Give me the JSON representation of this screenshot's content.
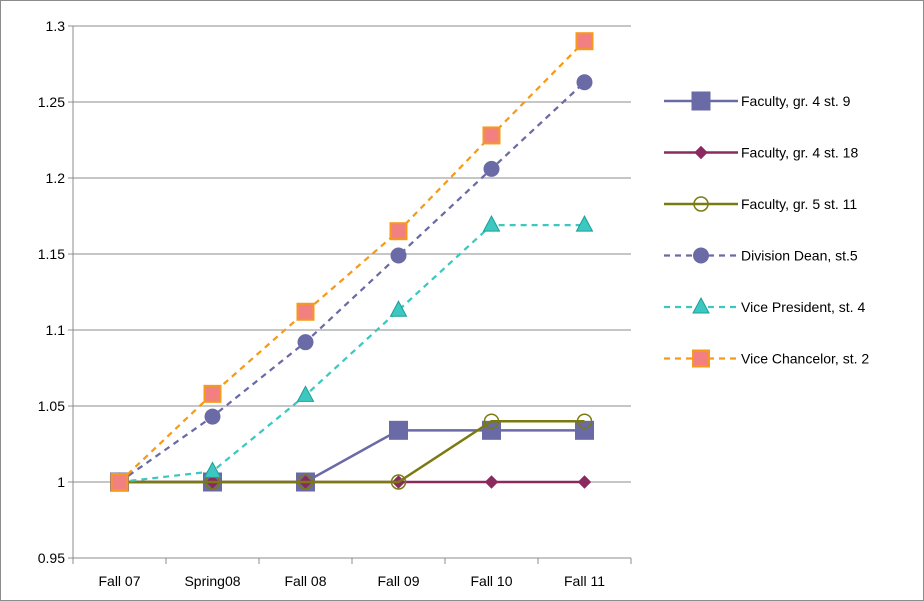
{
  "chart_data": {
    "type": "line",
    "categories": [
      "Fall 07",
      "Spring08",
      "Fall 08",
      "Fall 09",
      "Fall 10",
      "Fall 11"
    ],
    "ylim": [
      0.95,
      1.3
    ],
    "yticks": [
      "0.95",
      "1",
      "1.05",
      "1.1",
      "1.15",
      "1.2",
      "1.25",
      "1.3"
    ],
    "grid": "horizontal",
    "legend_position": "right",
    "series": [
      {
        "name": "Faculty, gr. 4 st. 9",
        "values": [
          1,
          1,
          1,
          1.034,
          1.034,
          1.034
        ],
        "color": "#6a6aa6",
        "dash": "solid",
        "marker": "square"
      },
      {
        "name": "Faculty, gr. 4 st. 18",
        "values": [
          1,
          1,
          1,
          1,
          1,
          1
        ],
        "color": "#8b2a5e",
        "dash": "solid",
        "marker": "diamond"
      },
      {
        "name": "Faculty, gr. 5 st. 11",
        "values": [
          1,
          1,
          1,
          1,
          1.04,
          1.04
        ],
        "color": "#7a7a10",
        "dash": "solid",
        "marker": "circle-open"
      },
      {
        "name": "Division Dean, st.5",
        "values": [
          1,
          1.043,
          1.092,
          1.149,
          1.206,
          1.263
        ],
        "color": "#6a6aa6",
        "dash": "dashed",
        "marker": "circle"
      },
      {
        "name": "Vice President, st. 4",
        "values": [
          1,
          1.007,
          1.057,
          1.113,
          1.169,
          1.169
        ],
        "color": "#3cc8c0",
        "dash": "dashed",
        "marker": "triangle"
      },
      {
        "name": "Vice Chancelor, st. 2",
        "values": [
          1,
          1.058,
          1.112,
          1.165,
          1.228,
          1.29
        ],
        "color": "#f59a1a",
        "dash": "dashed",
        "marker": "square-pink",
        "markerFill": "#f28080"
      }
    ]
  }
}
